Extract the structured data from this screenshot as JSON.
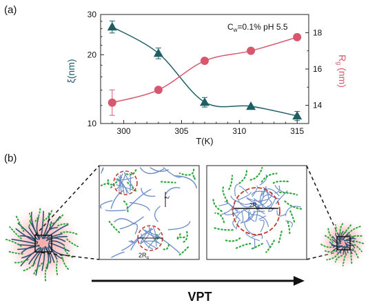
{
  "panel_a_label": "(a)",
  "panel_b_label": "(b)",
  "chart_data": {
    "type": "line",
    "annotation_main": "C",
    "annotation_sub": "w",
    "annotation_rest": "=0.1% pH 5.5",
    "xlabel": "T(K)",
    "ylabel_left": "ξ(nm)",
    "ylabel_right_main": "R",
    "ylabel_right_sub": "g",
    "ylabel_right_unit": " (nm)",
    "xlim": [
      298,
      316
    ],
    "ylim_left": [
      10,
      30
    ],
    "ylim_right": [
      13,
      19
    ],
    "xticks": [
      300,
      305,
      310,
      315
    ],
    "yticks_left": [
      10,
      20,
      30
    ],
    "yticks_right": [
      14,
      16,
      18
    ],
    "colors": {
      "xi": "#1f5f63",
      "rg": "#d9566f"
    },
    "series": [
      {
        "key": "xi",
        "axis": "left",
        "marker": "triangle",
        "x": [
          299,
          303,
          307,
          311,
          315
        ],
        "y": [
          26.5,
          20.3,
          12.4,
          11.9,
          10.8
        ],
        "err": [
          1.6,
          1.1,
          0.6,
          0.0,
          0.5
        ]
      },
      {
        "key": "rg",
        "axis": "right",
        "marker": "circle",
        "x": [
          299,
          303,
          307,
          311,
          315
        ],
        "y": [
          14.15,
          14.85,
          16.45,
          17.0,
          17.75
        ],
        "err": [
          0.7,
          0.0,
          0.0,
          0.0,
          0.0
        ]
      }
    ]
  },
  "diagram": {
    "left_box_label_main": "2R",
    "left_box_label_sub": "g",
    "xi_mark": "ξ",
    "right_box_label_main": "2R",
    "right_box_label_sub": "g",
    "arrow_label": "VPT",
    "colors": {
      "chain_blue": "#6f8fc9",
      "dark_chain": "#2f4f6f",
      "green_dots": "#2aa83a",
      "red_dash": "#c0392b",
      "glow": "#f7a8a8"
    }
  }
}
